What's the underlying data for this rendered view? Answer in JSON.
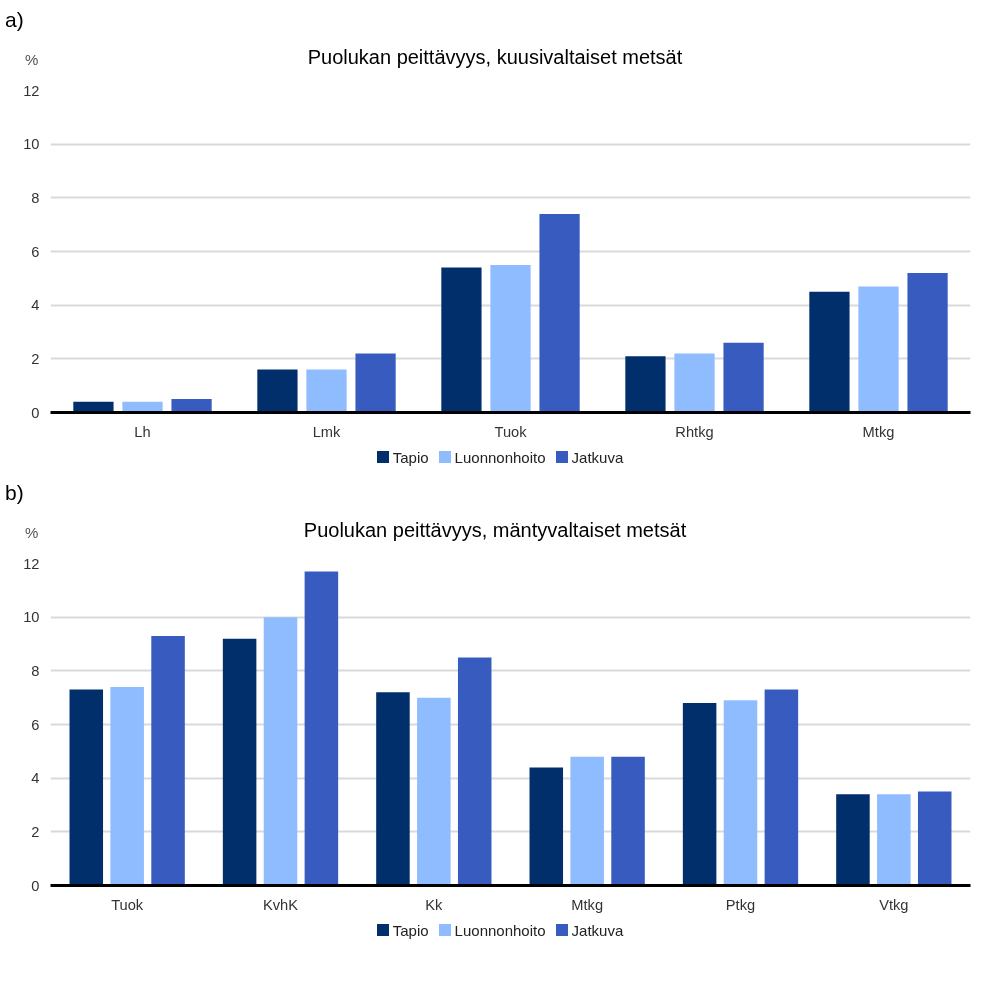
{
  "chart_data": [
    {
      "type": "bar",
      "title": "Puolukan peittävyys, kuusivaltaiset metsät",
      "ylabel": "%",
      "annotations": [
        "a)"
      ],
      "categories": [
        "Lh",
        "Lmk",
        "Tuok",
        "Rhtkg",
        "Mtkg"
      ],
      "series": [
        {
          "name": "Tapio",
          "color": "#002f6c",
          "values": [
            0.4,
            1.6,
            5.4,
            2.1,
            4.5
          ]
        },
        {
          "name": "Luonnonhoito",
          "color": "#8fbcff",
          "values": [
            0.4,
            1.6,
            5.5,
            2.2,
            4.7
          ]
        },
        {
          "name": "Jatkuva",
          "color": "#385bbf",
          "values": [
            0.5,
            2.2,
            7.4,
            2.6,
            5.2
          ]
        }
      ],
      "ylim": [
        0,
        12
      ],
      "yticks": [
        0,
        2,
        4,
        6,
        8,
        10,
        12
      ],
      "grid": "y",
      "legend": "bottom"
    },
    {
      "type": "bar",
      "title": "Puolukan peittävyys, mäntyvaltaiset metsät",
      "ylabel": "%",
      "annotations": [
        "b)"
      ],
      "categories": [
        "Tuok",
        "KvhK",
        "Kk",
        "Mtkg",
        "Ptkg",
        "Vtkg"
      ],
      "series": [
        {
          "name": "Tapio",
          "color": "#002f6c",
          "values": [
            7.3,
            9.2,
            7.2,
            4.4,
            6.8,
            3.4
          ]
        },
        {
          "name": "Luonnonhoito",
          "color": "#8fbcff",
          "values": [
            7.4,
            10.0,
            7.0,
            4.8,
            6.9,
            3.4
          ]
        },
        {
          "name": "Jatkuva",
          "color": "#385bbf",
          "values": [
            9.3,
            11.7,
            8.5,
            4.8,
            7.3,
            3.5
          ]
        }
      ],
      "ylim": [
        0,
        12
      ],
      "yticks": [
        0,
        2,
        4,
        6,
        8,
        10,
        12
      ],
      "grid": "y",
      "legend": "bottom"
    }
  ]
}
